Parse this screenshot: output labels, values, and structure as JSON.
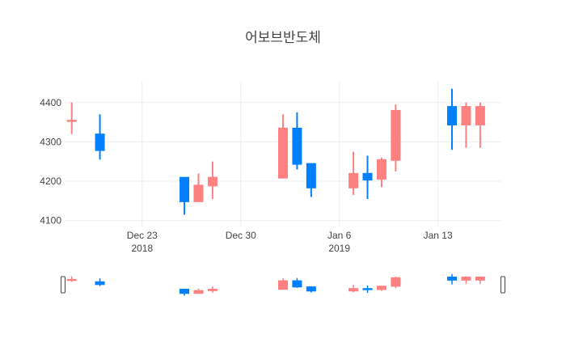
{
  "chart_data": {
    "type": "candlestick",
    "title": "어보브반도체",
    "x_tick_labels": [
      {
        "date": "2018-12-23",
        "line1": "Dec 23",
        "line2": "2018"
      },
      {
        "date": "2018-12-30",
        "line1": "Dec 30",
        "line2": ""
      },
      {
        "date": "2019-01-06",
        "line1": "Jan 6",
        "line2": "2019"
      },
      {
        "date": "2019-01-13",
        "line1": "Jan 13",
        "line2": ""
      }
    ],
    "y_ticks": [
      4100,
      4200,
      4300,
      4400
    ],
    "ylim": [
      4085,
      4455
    ],
    "xlim": [
      "2018-12-17T12:00",
      "2019-01-17T12:00"
    ],
    "grid": true,
    "rangeslider": true,
    "colors": {
      "increasing": "#FF8080",
      "decreasing": "#0080FF",
      "grid": "#eeeeee"
    },
    "candles": [
      {
        "date": "2018-12-18",
        "open": 4355,
        "high": 4400,
        "low": 4320,
        "close": 4355
      },
      {
        "date": "2018-12-20",
        "open": 4320,
        "high": 4370,
        "low": 4255,
        "close": 4278
      },
      {
        "date": "2018-12-26",
        "open": 4210,
        "high": 4210,
        "low": 4115,
        "close": 4148
      },
      {
        "date": "2018-12-27",
        "open": 4148,
        "high": 4220,
        "low": 4148,
        "close": 4190
      },
      {
        "date": "2018-12-28",
        "open": 4188,
        "high": 4250,
        "low": 4155,
        "close": 4210
      },
      {
        "date": "2019-01-02",
        "open": 4208,
        "high": 4370,
        "low": 4208,
        "close": 4335
      },
      {
        "date": "2019-01-03",
        "open": 4335,
        "high": 4375,
        "low": 4230,
        "close": 4243
      },
      {
        "date": "2019-01-04",
        "open": 4245,
        "high": 4245,
        "low": 4160,
        "close": 4183
      },
      {
        "date": "2019-01-07",
        "open": 4183,
        "high": 4275,
        "low": 4165,
        "close": 4220
      },
      {
        "date": "2019-01-08",
        "open": 4220,
        "high": 4265,
        "low": 4155,
        "close": 4203
      },
      {
        "date": "2019-01-09",
        "open": 4205,
        "high": 4260,
        "low": 4185,
        "close": 4255
      },
      {
        "date": "2019-01-10",
        "open": 4253,
        "high": 4395,
        "low": 4225,
        "close": 4380
      },
      {
        "date": "2019-01-14",
        "open": 4390,
        "high": 4435,
        "low": 4280,
        "close": 4343
      },
      {
        "date": "2019-01-15",
        "open": 4343,
        "high": 4400,
        "low": 4285,
        "close": 4390
      },
      {
        "date": "2019-01-16",
        "open": 4343,
        "high": 4400,
        "low": 4285,
        "close": 4390
      }
    ]
  }
}
